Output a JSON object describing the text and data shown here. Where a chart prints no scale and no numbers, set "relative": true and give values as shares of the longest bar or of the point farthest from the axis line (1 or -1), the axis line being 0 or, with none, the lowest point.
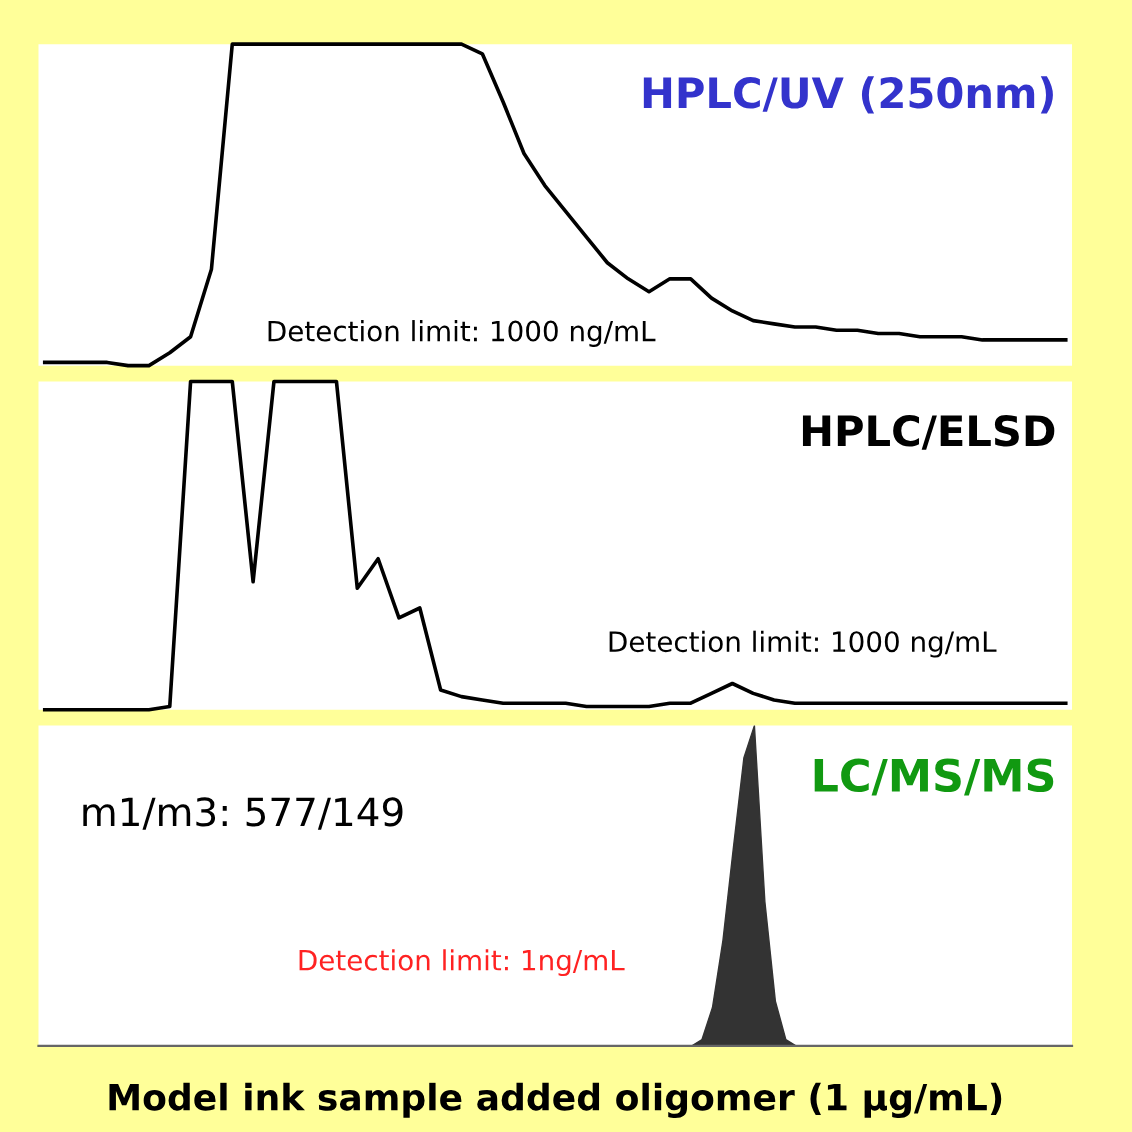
{
  "chart_data": [
    {
      "type": "line",
      "title": "HPLC/UV (250nm)",
      "relative": true,
      "tick_labels": false,
      "categories": [
        null,
        null,
        null,
        null,
        null,
        null,
        null,
        null,
        null,
        null,
        null,
        null,
        null,
        null,
        null,
        null,
        null,
        null,
        null,
        null,
        null,
        null,
        null,
        null,
        null,
        null,
        null,
        null,
        null,
        null,
        null,
        null,
        null,
        null,
        null,
        null,
        null,
        null,
        null,
        null,
        null,
        null,
        null,
        null,
        null,
        null,
        null,
        null,
        null,
        null
      ],
      "series": [
        {
          "color": "#000000",
          "values": [
            0.01,
            0.01,
            0.01,
            0.01,
            0,
            0,
            0.04,
            0.09,
            0.3,
            1,
            1,
            1,
            1,
            1,
            1,
            1,
            1,
            1,
            1,
            1,
            1,
            0.97,
            0.82,
            0.66,
            0.56,
            0.48,
            0.4,
            0.32,
            0.27,
            0.23,
            0.27,
            0.27,
            0.21,
            0.17,
            0.14,
            0.13,
            0.12,
            0.12,
            0.11,
            0.11,
            0.1,
            0.1,
            0.09,
            0.09,
            0.09,
            0.08,
            0.08,
            0.08,
            0.08,
            0.08
          ]
        }
      ],
      "annotations": [
        "Detection limit: 1000 ng/mL"
      ]
    },
    {
      "type": "line",
      "title": "HPLC/ELSD",
      "relative": true,
      "tick_labels": false,
      "categories": [
        null,
        null,
        null,
        null,
        null,
        null,
        null,
        null,
        null,
        null,
        null,
        null,
        null,
        null,
        null,
        null,
        null,
        null,
        null,
        null,
        null,
        null,
        null,
        null,
        null,
        null,
        null,
        null,
        null,
        null,
        null,
        null,
        null,
        null,
        null,
        null,
        null,
        null,
        null,
        null,
        null,
        null,
        null,
        null,
        null,
        null,
        null,
        null,
        null,
        null
      ],
      "series": [
        {
          "color": "#000000",
          "values": [
            0,
            0,
            0,
            0,
            0,
            0,
            0.01,
            1,
            1,
            1,
            0.39,
            1,
            1,
            1,
            1,
            0.37,
            0.46,
            0.28,
            0.31,
            0.06,
            0.04,
            0.03,
            0.02,
            0.02,
            0.02,
            0.02,
            0.01,
            0.01,
            0.01,
            0.01,
            0.02,
            0.02,
            0.05,
            0.08,
            0.05,
            0.03,
            0.02,
            0.02,
            0.02,
            0.02,
            0.02,
            0.02,
            0.02,
            0.02,
            0.02,
            0.02,
            0.02,
            0.02,
            0.02,
            0.02
          ]
        }
      ],
      "annotations": [
        "Detection limit: 1000 ng/mL"
      ]
    },
    {
      "type": "area",
      "title": "LC/MS/MS",
      "relative": true,
      "tick_labels": false,
      "categories": [
        null,
        null,
        null,
        null,
        null,
        null,
        null,
        null,
        null,
        null,
        null,
        null,
        null,
        null,
        null,
        null,
        null,
        null,
        null,
        null,
        null,
        null,
        null,
        null,
        null,
        null,
        null,
        null,
        null,
        null,
        null,
        null,
        null,
        null,
        null,
        null,
        null,
        null,
        null,
        null,
        null,
        null,
        null,
        null,
        null,
        null,
        null,
        null,
        null,
        null,
        null,
        null,
        null,
        null,
        null,
        null,
        null,
        null,
        null,
        null,
        null,
        null,
        null,
        null,
        null,
        null,
        null,
        null,
        null,
        null,
        null,
        null,
        null,
        null,
        null,
        null,
        null,
        null,
        null,
        null,
        null,
        null,
        null,
        null,
        null,
        null,
        null,
        null,
        null,
        null,
        null,
        null,
        null,
        null,
        null,
        null,
        null,
        null,
        null
      ],
      "series": [
        {
          "color": "#333333",
          "values": [
            0,
            0,
            0,
            0,
            0,
            0,
            0,
            0,
            0,
            0,
            0,
            0,
            0,
            0,
            0,
            0,
            0,
            0,
            0,
            0,
            0,
            0,
            0,
            0,
            0,
            0,
            0,
            0,
            0,
            0,
            0,
            0,
            0,
            0,
            0,
            0,
            0,
            0,
            0,
            0,
            0,
            0,
            0,
            0,
            0,
            0,
            0,
            0,
            0,
            0,
            0,
            0,
            0,
            0,
            0,
            0,
            0,
            0,
            0,
            0,
            0,
            0,
            0,
            0.02,
            0.12,
            0.33,
            0.62,
            0.9,
            1,
            0.45,
            0.14,
            0.02,
            0,
            0,
            0,
            0,
            0,
            0,
            0,
            0,
            0,
            0,
            0,
            0,
            0,
            0,
            0,
            0,
            0,
            0,
            0,
            0,
            0,
            0,
            0,
            0,
            0,
            0,
            0
          ]
        }
      ],
      "annotations": [
        "m1/m3: 577/149",
        "Detection limit: 1ng/mL",
        "Model ink sample added oligomer (1 μg/mL)"
      ]
    }
  ]
}
